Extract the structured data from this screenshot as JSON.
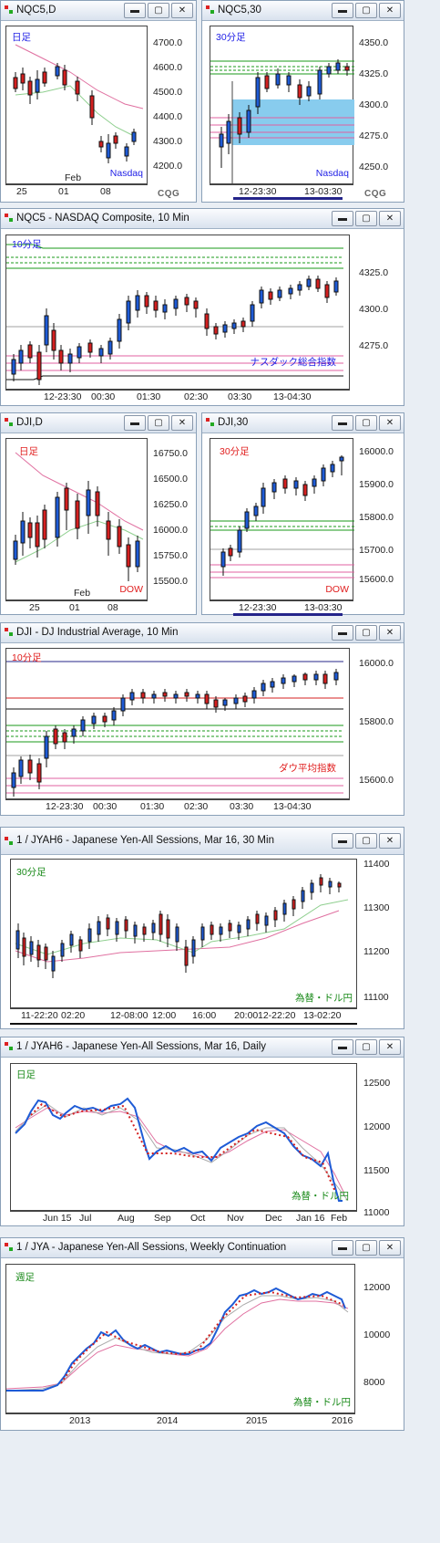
{
  "windows": [
    {
      "id": "w1",
      "title": "NQC5,D",
      "tag": "日足",
      "tag_color": "#1e1ee6",
      "market": "Nasdaq",
      "market_color": "#1e1ee6",
      "y_ticks": [
        "4700.0",
        "4600.0",
        "4500.0",
        "4400.0",
        "4300.0",
        "4200.0"
      ],
      "x_ticks": [
        "25",
        "01",
        "08"
      ],
      "month": "Feb"
    },
    {
      "id": "w2",
      "title": "NQC5,30",
      "tag": "30分足",
      "tag_color": "#1e1ee6",
      "market": "Nasdaq",
      "market_color": "#1e1ee6",
      "y_ticks": [
        "4350.0",
        "4325.0",
        "4300.0",
        "4275.0",
        "4250.0"
      ],
      "x_ticks": [
        "12-23:30",
        "13-03:30"
      ]
    },
    {
      "id": "w3",
      "title": "NQC5 - NASDAQ Composite, 10 Min",
      "tag": "10分足",
      "tag_color": "#1e1ee6",
      "market": "ナスダック総合指数",
      "market_color": "#1e1ee6",
      "y_ticks": [
        "4325.0",
        "4300.0",
        "4275.0"
      ],
      "x_ticks": [
        "12-23:30",
        "00:30",
        "01:30",
        "02:30",
        "03:30",
        "13-04:30"
      ]
    },
    {
      "id": "w4",
      "title": "DJI,D",
      "tag": "日足",
      "tag_color": "#e01e1e",
      "market": "DOW",
      "market_color": "#e01e1e",
      "y_ticks": [
        "16750.0",
        "16500.0",
        "16250.0",
        "16000.0",
        "15750.0",
        "15500.0"
      ],
      "x_ticks": [
        "25",
        "01",
        "08"
      ],
      "month": "Feb"
    },
    {
      "id": "w5",
      "title": "DJI,30",
      "tag": "30分足",
      "tag_color": "#e01e1e",
      "market": "DOW",
      "market_color": "#e01e1e",
      "y_ticks": [
        "16000.0",
        "15900.0",
        "15800.0",
        "15700.0",
        "15600.0"
      ],
      "x_ticks": [
        "12-23:30",
        "13-03:30"
      ]
    },
    {
      "id": "w6",
      "title": "DJI - DJ Industrial Average, 10 Min",
      "tag": "10分足",
      "tag_color": "#e01e1e",
      "market": "ダウ平均指数",
      "market_color": "#e01e1e",
      "y_ticks": [
        "16000.0",
        "15800.0",
        "15600.0"
      ],
      "x_ticks": [
        "12-23:30",
        "00:30",
        "01:30",
        "02:30",
        "03:30",
        "13-04:30"
      ]
    },
    {
      "id": "w7",
      "title": "1 / JYAH6 - Japanese Yen-All Sessions, Mar 16, 30 Min",
      "tag": "30分足",
      "tag_color": "#1a8a1a",
      "market": "為替・ドル円",
      "market_color": "#1a8a1a",
      "y_ticks": [
        "11400",
        "11300",
        "11200",
        "11100"
      ],
      "x_ticks": [
        "11-22:20",
        "02:20",
        "12-08:00",
        "12:00",
        "16:00",
        "20:00",
        "12-22:20",
        "13-02:20"
      ]
    },
    {
      "id": "w8",
      "title": "1 / JYAH6 - Japanese Yen-All Sessions, Mar 16, Daily",
      "tag": "日足",
      "tag_color": "#1a8a1a",
      "market": "為替・ドル円",
      "market_color": "#1a8a1a",
      "y_ticks": [
        "12500",
        "12000",
        "11500",
        "11000"
      ],
      "x_ticks": [
        "Jun 15",
        "Jul",
        "Aug",
        "Sep",
        "Oct",
        "Nov",
        "Dec",
        "Jan 16",
        "Feb"
      ]
    },
    {
      "id": "w9",
      "title": "1 / JYA - Japanese Yen-All Sessions, Weekly Continuation",
      "tag": "週足",
      "tag_color": "#1a8a1a",
      "market": "為替・ドル円",
      "market_color": "#1a8a1a",
      "y_ticks": [
        "12000",
        "10000",
        "8000"
      ],
      "x_ticks": [
        "2013",
        "2014",
        "2015",
        "2016"
      ]
    }
  ],
  "button_labels": {
    "minimize": "▬",
    "maximize": "▢",
    "close": "✕"
  },
  "logo": "CQG",
  "colors": {
    "up": "#1e5bd6",
    "down": "#d42020",
    "support": "#1a9a1a",
    "resistance": "#e060a0",
    "highlight": "#88ccee"
  }
}
